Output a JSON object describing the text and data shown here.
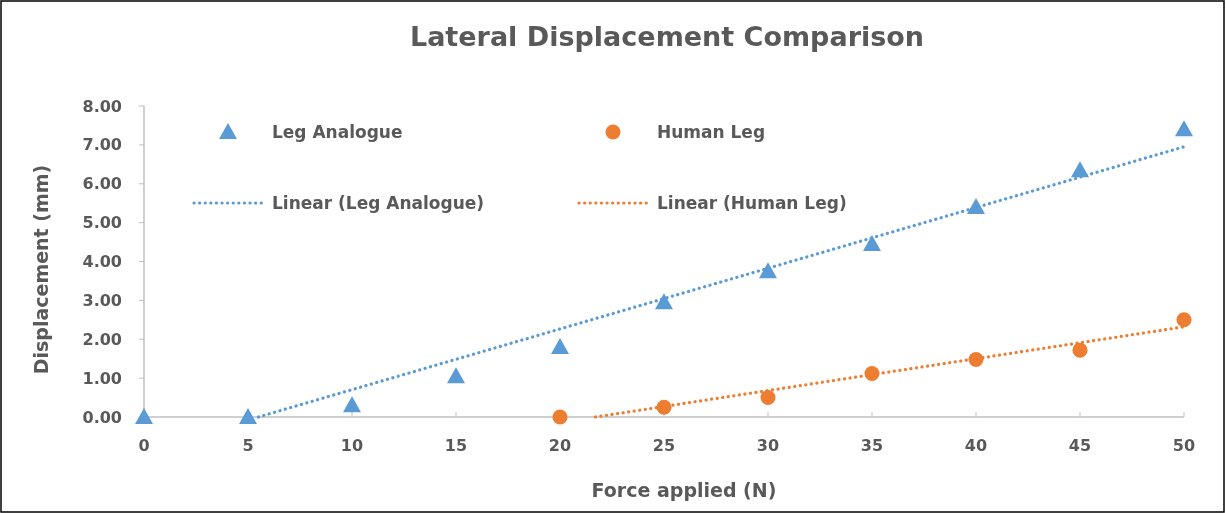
{
  "chart_data": {
    "type": "scatter",
    "title": "Lateral Displacement Comparison",
    "xlabel": "Force applied (N)",
    "ylabel": "Displacement (mm)",
    "xlim": [
      0,
      50
    ],
    "xticks": [
      0,
      5,
      10,
      15,
      20,
      25,
      30,
      35,
      40,
      45,
      50
    ],
    "ylim": [
      0,
      8
    ],
    "yticks": [
      {
        "value": 0,
        "label": "0.00"
      },
      {
        "value": 1,
        "label": "1.00"
      },
      {
        "value": 2,
        "label": "2.00"
      },
      {
        "value": 3,
        "label": "3.00"
      },
      {
        "value": 4,
        "label": "4.00"
      },
      {
        "value": 5,
        "label": "5.00"
      },
      {
        "value": 6,
        "label": "6.00"
      },
      {
        "value": 7,
        "label": "7.00"
      },
      {
        "value": 8,
        "label": "8.00"
      }
    ],
    "grid": false,
    "legend": "top",
    "series": [
      {
        "name": "Leg Analogue",
        "marker": "triangle",
        "color": "#5b9bd5",
        "x": [
          0,
          5,
          10,
          15,
          20,
          25,
          30,
          35,
          40,
          45,
          50
        ],
        "values": [
          0,
          0,
          0.3,
          1.05,
          1.8,
          2.95,
          3.75,
          4.45,
          5.4,
          6.35,
          7.4
        ]
      },
      {
        "name": "Human Leg",
        "marker": "circle",
        "color": "#ed7d31",
        "x": [
          20,
          25,
          30,
          35,
          40,
          45,
          50
        ],
        "values": [
          0,
          0.25,
          0.5,
          1.12,
          1.48,
          1.72,
          2.5
        ]
      },
      {
        "name": "Linear (Leg Analogue)",
        "type": "line",
        "marker": "none",
        "line_style": "dotted",
        "color": "#5b9bd5",
        "x": [
          5.5,
          50
        ],
        "values": [
          0,
          6.95
        ]
      },
      {
        "name": "Linear (Human Leg)",
        "type": "line",
        "marker": "none",
        "line_style": "dotted",
        "color": "#ed7d31",
        "x": [
          21.7,
          50
        ],
        "values": [
          0,
          2.32
        ]
      }
    ]
  }
}
